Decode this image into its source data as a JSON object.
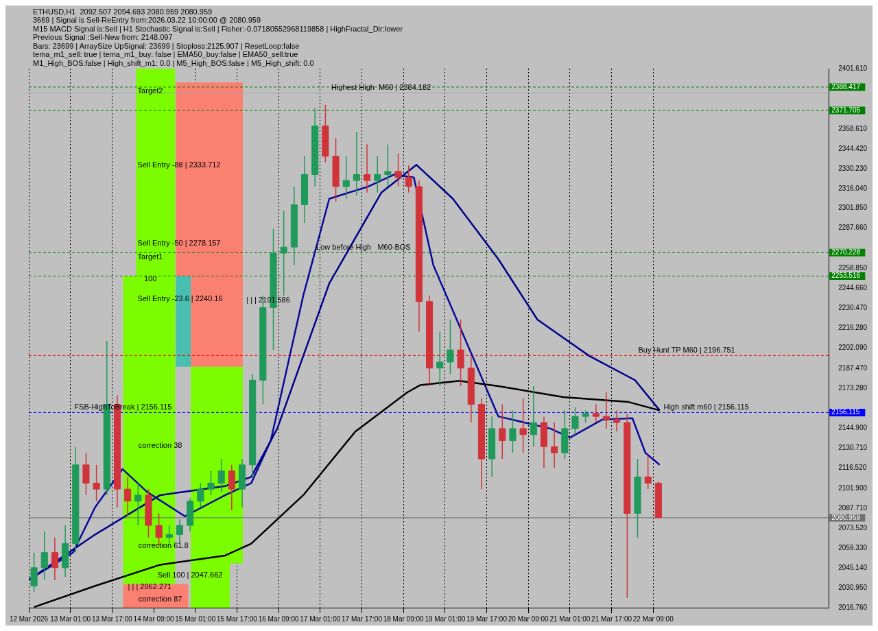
{
  "chart_data": {
    "type": "candlestick",
    "x": [
      "2026-03-12T11:00",
      "2026-03-12T15:00",
      "2026-03-12T19:00",
      "2026-03-12T23:00",
      "2026-03-13T03:00",
      "2026-03-13T07:00",
      "2026-03-13T11:00",
      "2026-03-13T15:00",
      "2026-03-13T19:00",
      "2026-03-13T23:00",
      "2026-03-14T03:00",
      "2026-03-14T07:00",
      "2026-03-14T11:00",
      "2026-03-14T15:00",
      "2026-03-14T19:00",
      "2026-03-14T23:00",
      "2026-03-15T03:00",
      "2026-03-15T07:00",
      "2026-03-15T11:00",
      "2026-03-15T15:00",
      "2026-03-15T19:00",
      "2026-03-15T23:00",
      "2026-03-16T03:00",
      "2026-03-16T07:00",
      "2026-03-16T11:00",
      "2026-03-16T15:00",
      "2026-03-16T19:00",
      "2026-03-16T23:00",
      "2026-03-17T03:00",
      "2026-03-17T07:00",
      "2026-03-17T11:00",
      "2026-03-17T15:00",
      "2026-03-17T19:00",
      "2026-03-17T23:00",
      "2026-03-18T03:00",
      "2026-03-18T07:00",
      "2026-03-18T11:00",
      "2026-03-18T15:00",
      "2026-03-18T19:00",
      "2026-03-18T23:00",
      "2026-03-19T03:00",
      "2026-03-19T07:00",
      "2026-03-19T11:00",
      "2026-03-19T15:00",
      "2026-03-19T19:00",
      "2026-03-19T23:00",
      "2026-03-20T03:00",
      "2026-03-20T07:00",
      "2026-03-20T11:00",
      "2026-03-20T15:00",
      "2026-03-20T19:00",
      "2026-03-20T23:00",
      "2026-03-21T03:00",
      "2026-03-21T07:00",
      "2026-03-21T11:00",
      "2026-03-21T15:00",
      "2026-03-21T19:00",
      "2026-03-21T23:00",
      "2026-03-22T03:00",
      "2026-03-22T07:00",
      "2026-03-22T11:00"
    ],
    "ohlc": [
      [
        2032.3,
        2056.1,
        2028.0,
        2045.3
      ],
      [
        2045.3,
        2071.2,
        2036.6,
        2056.1
      ],
      [
        2056.1,
        2066.9,
        2036.6,
        2045.3
      ],
      [
        2045.3,
        2075.5,
        2038.8,
        2062.5
      ],
      [
        2062.5,
        2131.7,
        2056.1,
        2118.7
      ],
      [
        2118.7,
        2127.3,
        2097.1,
        2105.7
      ],
      [
        2105.7,
        2118.7,
        2092.8,
        2101.4
      ],
      [
        2101.4,
        2207.2,
        2097.1,
        2161.9
      ],
      [
        2161.9,
        2168.4,
        2088.5,
        2101.4
      ],
      [
        2101.4,
        2110.1,
        2082.0,
        2092.8
      ],
      [
        2092.8,
        2105.7,
        2075.5,
        2097.1
      ],
      [
        2097.1,
        2101.4,
        2066.9,
        2075.5
      ],
      [
        2075.5,
        2084.1,
        2060.4,
        2066.9
      ],
      [
        2066.9,
        2075.5,
        2062.5,
        2069.0
      ],
      [
        2069.0,
        2079.8,
        2062.5,
        2075.5
      ],
      [
        2075.5,
        2094.9,
        2071.2,
        2092.8
      ],
      [
        2092.8,
        2105.7,
        2088.5,
        2101.4
      ],
      [
        2101.4,
        2114.4,
        2097.1,
        2105.7
      ],
      [
        2105.7,
        2123.0,
        2099.3,
        2114.4
      ],
      [
        2114.4,
        2118.7,
        2086.3,
        2101.4
      ],
      [
        2101.4,
        2123.0,
        2088.5,
        2118.7
      ],
      [
        2118.7,
        2183.5,
        2110.1,
        2179.2
      ],
      [
        2179.2,
        2239.6,
        2161.9,
        2231.0
      ],
      [
        2231.0,
        2287.2,
        2200.8,
        2269.9
      ],
      [
        2269.9,
        2300.1,
        2239.6,
        2274.2
      ],
      [
        2274.2,
        2317.4,
        2261.2,
        2304.4
      ],
      [
        2304.4,
        2339.0,
        2291.5,
        2326.0
      ],
      [
        2326.0,
        2373.5,
        2317.4,
        2360.6
      ],
      [
        2360.6,
        2375.7,
        2334.7,
        2339.0
      ],
      [
        2339.0,
        2351.9,
        2306.6,
        2317.4
      ],
      [
        2317.4,
        2339.0,
        2308.7,
        2321.7
      ],
      [
        2321.7,
        2356.3,
        2310.9,
        2326.0
      ],
      [
        2326.0,
        2347.6,
        2313.1,
        2321.7
      ],
      [
        2321.7,
        2339.0,
        2313.1,
        2326.0
      ],
      [
        2326.0,
        2347.6,
        2317.4,
        2328.2
      ],
      [
        2328.2,
        2341.1,
        2317.4,
        2323.9
      ],
      [
        2323.9,
        2332.5,
        2313.1,
        2317.4
      ],
      [
        2317.4,
        2321.7,
        2213.7,
        2235.3
      ],
      [
        2235.3,
        2239.6,
        2174.9,
        2187.8
      ],
      [
        2187.8,
        2213.7,
        2174.9,
        2192.1
      ],
      [
        2192.1,
        2222.4,
        2183.5,
        2200.8
      ],
      [
        2200.8,
        2222.4,
        2174.9,
        2187.8
      ],
      [
        2187.8,
        2196.4,
        2148.9,
        2161.9
      ],
      [
        2161.9,
        2166.2,
        2101.4,
        2123.0
      ],
      [
        2123.0,
        2153.3,
        2110.1,
        2144.6
      ],
      [
        2144.6,
        2161.9,
        2123.0,
        2136.0
      ],
      [
        2136.0,
        2157.6,
        2127.3,
        2144.6
      ],
      [
        2144.6,
        2166.2,
        2127.3,
        2140.3
      ],
      [
        2140.3,
        2174.9,
        2131.7,
        2148.9
      ],
      [
        2148.9,
        2153.3,
        2116.5,
        2131.7
      ],
      [
        2131.7,
        2148.9,
        2116.5,
        2127.3
      ],
      [
        2127.3,
        2157.6,
        2123.0,
        2144.6
      ],
      [
        2144.6,
        2159.7,
        2140.3,
        2153.3
      ],
      [
        2153.3,
        2157.6,
        2148.9,
        2155.4
      ],
      [
        2155.4,
        2161.9,
        2148.9,
        2153.3
      ],
      [
        2153.3,
        2170.5,
        2144.6,
        2151.1
      ],
      [
        2151.1,
        2157.6,
        2142.5,
        2148.9
      ],
      [
        2148.9,
        2155.4,
        2023.7,
        2084.1
      ],
      [
        2084.1,
        2123.0,
        2066.9,
        2110.1
      ],
      [
        2110.1,
        2125.2,
        2101.4,
        2105.7
      ],
      [
        2105.7,
        2107.0,
        2080.959,
        2080.959
      ]
    ],
    "series": [
      {
        "type": "line",
        "x": [
          "2026-03-13T21:15",
          "2026-03-14T02:15",
          "2026-03-14T02:15",
          "2026-03-14T17:15"
        ],
        "values": [
          null,
          null,
          null,
          null
        ],
        "lower": [
          2033.5,
          2033.5,
          2033.5,
          2033.5
        ],
        "upper": [
          2253.5,
          2253.5,
          2401.6,
          2401.6
        ],
        "color": "#7cfc00"
      },
      {
        "type": "line",
        "x": [
          "2026-03-14T17:30",
          "2026-03-14T23:15",
          "2026-03-14T23:15",
          "2026-03-15T19:15"
        ],
        "values": [
          null,
          null,
          null,
          null
        ],
        "lower": [
          2253.5,
          2253.5,
          2188.7,
          2188.7
        ],
        "upper": [
          2391.7,
          2391.7,
          2391.7,
          2391.7
        ],
        "color": "#fa8072"
      },
      {
        "type": "line",
        "x": [
          "2026-03-14T17:30",
          "2026-03-14T23:15"
        ],
        "values": [
          null,
          null
        ],
        "lower": [
          2188.7,
          2188.7
        ],
        "upper": [
          2253.5,
          2253.5
        ],
        "color": "#48bfb0"
      },
      {
        "type": "line",
        "x": [
          "2026-03-14T23:15",
          "2026-03-15T14:15",
          "2026-03-15T14:15",
          "2026-03-15T19:15"
        ],
        "values": [
          null,
          null,
          null,
          null
        ],
        "lower": [
          2016.8,
          2016.8,
          2048.3,
          2048.3
        ],
        "upper": [
          2188.7,
          2188.7,
          2188.7,
          2188.7
        ],
        "color": "#7cfc00"
      },
      {
        "type": "line",
        "x": [
          "2026-03-13T21:15",
          "2026-03-14T22:15"
        ],
        "values": [
          null,
          null
        ],
        "lower": [
          2016.8,
          2016.8
        ],
        "upper": [
          2033.5,
          2033.5
        ],
        "color": "#fa8072"
      },
      {
        "type": "line",
        "color": "#000000",
        "x": [
          "2026-03-12T11:00",
          "2026-03-13T10:30",
          "2026-03-14T11:30",
          "2026-03-15T12:30",
          "2026-03-15T22:30",
          "2026-03-16T18:30",
          "2026-03-17T14:30",
          "2026-03-18T10:30",
          "2026-03-18T15:30",
          "2026-03-19T06:30",
          "2026-03-19T21:30",
          "2026-03-20T22:30",
          "2026-03-21T23:30",
          "2026-03-22T11:30"
        ],
        "values": [
          2017.2,
          2032.3,
          2047.4,
          2054.0,
          2062.5,
          2097.1,
          2142.5,
          2170.5,
          2175.7,
          2178.7,
          2174.9,
          2167.1,
          2163.6,
          2157.6
        ]
      },
      {
        "type": "line",
        "color": "#00008b",
        "x": [
          "2026-03-12T09:00",
          "2026-03-13T10:30",
          "2026-03-14T11:30",
          "2026-03-15T12:30",
          "2026-03-15T22:30",
          "2026-03-16T08:30",
          "2026-03-17T04:30",
          "2026-03-18T00:30",
          "2026-03-18T14:00",
          "2026-03-19T04:00",
          "2026-03-19T21:30",
          "2026-03-20T12:30",
          "2026-03-21T08:30",
          "2026-03-22T02:00",
          "2026-03-22T11:30"
        ],
        "values": [
          2036.6,
          2069.0,
          2097.1,
          2103.6,
          2110.1,
          2144.6,
          2248.3,
          2313.1,
          2332.9,
          2308.7,
          2265.5,
          2222.4,
          2196.4,
          2179.2,
          2157.6
        ]
      },
      {
        "type": "line",
        "color": "#0a0a9a",
        "x": [
          "2026-03-12T09:00",
          "2026-03-13T02:00",
          "2026-03-13T10:30",
          "2026-03-13T21:00",
          "2026-03-14T06:30",
          "2026-03-14T21:00",
          "2026-03-15T12:30",
          "2026-03-15T22:30",
          "2026-03-16T06:00",
          "2026-03-16T18:30",
          "2026-03-17T04:30",
          "2026-03-17T19:30",
          "2026-03-18T05:30",
          "2026-03-18T13:00",
          "2026-03-18T20:30",
          "2026-03-19T11:30",
          "2026-03-19T21:30",
          "2026-03-20T17:30",
          "2026-03-21T01:00",
          "2026-03-21T13:30",
          "2026-03-22T01:00",
          "2026-03-22T06:00",
          "2026-03-22T11:30"
        ],
        "values": [
          2036.6,
          2056.1,
          2088.5,
          2115.7,
          2099.3,
          2082.0,
          2097.1,
          2105.7,
          2136.0,
          2239.6,
          2308.7,
          2317.4,
          2326.0,
          2323.9,
          2261.2,
          2196.4,
          2153.3,
          2144.6,
          2138.1,
          2151.1,
          2152.0,
          2127.3,
          2118.7
        ]
      }
    ],
    "xlim": [
      "2026-03-12T09:00",
      "2026-03-25T04:30"
    ],
    "xticks": [
      {
        "value": "2026-03-12T09:00",
        "label": "12 Mar 2026"
      },
      {
        "value": "2026-03-13T01:00",
        "label": "13 Mar 01:00"
      },
      {
        "value": "2026-03-13T17:00",
        "label": "13 Mar 17:00"
      },
      {
        "value": "2026-03-14T09:00",
        "label": "14 Mar 09:00"
      },
      {
        "value": "2026-03-15T01:00",
        "label": "15 Mar 01:00"
      },
      {
        "value": "2026-03-15T17:00",
        "label": "15 Mar 17:00"
      },
      {
        "value": "2026-03-16T09:00",
        "label": "16 Mar 09:00"
      },
      {
        "value": "2026-03-17T01:00",
        "label": "17 Mar 01:00"
      },
      {
        "value": "2026-03-17T17:00",
        "label": "17 Mar 17:00"
      },
      {
        "value": "2026-03-18T09:00",
        "label": "18 Mar 09:00"
      },
      {
        "value": "2026-03-19T01:00",
        "label": "19 Mar 01:00"
      },
      {
        "value": "2026-03-19T17:00",
        "label": "19 Mar 17:00"
      },
      {
        "value": "2026-03-20T09:00",
        "label": "20 Mar 09:00"
      },
      {
        "value": "2026-03-21T01:00",
        "label": "21 Mar 01:00"
      },
      {
        "value": "2026-03-21T17:00",
        "label": "21 Mar 17:00"
      },
      {
        "value": "2026-03-22T09:00",
        "label": "22 Mar 09:00"
      }
    ],
    "ylim": [
      2016.76,
      2401.61
    ],
    "yticks": [
      {
        "value": 2016.76,
        "label": "2016.760"
      },
      {
        "value": 2030.95,
        "label": "2030.950"
      },
      {
        "value": 2045.14,
        "label": "2045.140"
      },
      {
        "value": 2059.33,
        "label": "2059.330"
      },
      {
        "value": 2073.52,
        "label": "2073.520"
      },
      {
        "value": 2087.71,
        "label": "2087.710"
      },
      {
        "value": 2101.9,
        "label": "2101.900"
      },
      {
        "value": 2116.52,
        "label": "2116.520"
      },
      {
        "value": 2130.71,
        "label": "2130.710"
      },
      {
        "value": 2144.9,
        "label": "2144.900"
      },
      {
        "value": 2173.28,
        "label": "2173.280"
      },
      {
        "value": 2187.47,
        "label": "2187.470"
      },
      {
        "value": 2202.09,
        "label": "2202.090"
      },
      {
        "value": 2216.28,
        "label": "2216.280"
      },
      {
        "value": 2230.47,
        "label": "2230.470"
      },
      {
        "value": 2244.66,
        "label": "2244.660"
      },
      {
        "value": 2258.85,
        "label": "2258.850"
      },
      {
        "value": 2287.66,
        "label": "2287.660"
      },
      {
        "value": 2301.85,
        "label": "2301.850"
      },
      {
        "value": 2316.04,
        "label": "2316.040"
      },
      {
        "value": 2330.23,
        "label": "2330.230"
      },
      {
        "value": 2344.42,
        "label": "2344.420"
      },
      {
        "value": 2358.61,
        "label": "2358.610"
      },
      {
        "value": 2401.61,
        "label": "2401.610"
      }
    ],
    "grid": "x",
    "legend": false,
    "ref_lines": [
      {
        "axis": "y",
        "value": 2388.417,
        "label": "2388.417",
        "color": "#008000",
        "line_style": "dashed"
      },
      {
        "axis": "y",
        "value": 2384.182,
        "color": "#a8a8a8",
        "line_style": "solid"
      },
      {
        "axis": "y",
        "value": 2371.705,
        "label": "2371.705",
        "color": "#008000",
        "line_style": "dashed"
      },
      {
        "axis": "y",
        "value": 2270.228,
        "label": "2270.228",
        "color": "#008000",
        "line_style": "dashed"
      },
      {
        "axis": "y",
        "value": 2253.516,
        "label": "2253.516",
        "color": "#008000",
        "line_style": "dashed"
      },
      {
        "axis": "y",
        "value": 2196.751,
        "color": "#ff0000",
        "line_style": "dashed"
      },
      {
        "axis": "y",
        "value": 2156.115,
        "label": "2156.115",
        "color": "#0000ff",
        "line_style": "dashed"
      },
      {
        "axis": "y",
        "value": 2080.959,
        "label": "2080.959",
        "color": "#707070",
        "line_style": "solid"
      }
    ],
    "annotations": [
      "ETHUSD,H1  2092.507 2094.693 2080.959 2080.959",
      "3669 | Signal is Sell-ReEntry from:2026.03.22 10:00:00 @ 2080.959",
      "M15 MACD Signal is:Sell | H1 Stochastic Signal is:Sell | Fisher:-0.07180552968119858 | HighFractal_Dir:lower",
      "Previous Signal :Sell-New from: 2148.097",
      "Bars: 23699 | ArraySize UpSignal: 23699 | Stoploss:2125.907 | ResetLoop:false",
      "tema_m1_sell: true | tema_m1_buy: false | EMA50_buy:false | EMA50_sell:true",
      "M1_High_BOS:false | High_shift_m1: 0.0 | M5_High_BOS:false | M5_High_shift: 0.0",
      "Target2",
      "Sell Entry -88 | 2333.712",
      "Sell Entry -50 | 2278.157",
      "Target1",
      "100",
      "Sell Entry -23.6 | 2240.16",
      "| | | 2191.586",
      "correction 38",
      "correction 61.8",
      "Sell 100 | 2047.662",
      "| | | 2062.271",
      "correction 87",
      {
        "text": "Highest High  M60 | 2384.182",
        "x": "2026-03-17T05:15",
        "y": 2384.182
      },
      {
        "text": "Low before High   M60-BOS",
        "x": "2026-03-16T23:30",
        "y": 2270.228
      },
      {
        "text": "Buy Hunt TP M60 | 2196.751",
        "x": "2026-03-22T03:15",
        "y": 2196.751
      },
      {
        "text": "High shift m60 | 2156.115",
        "x": "2026-03-22T13:00",
        "y": 2156.115
      },
      {
        "text": "FSB-HighToBreak | 2156.115",
        "x": "2026-03-13T02:30",
        "y": 2156.115
      }
    ]
  }
}
